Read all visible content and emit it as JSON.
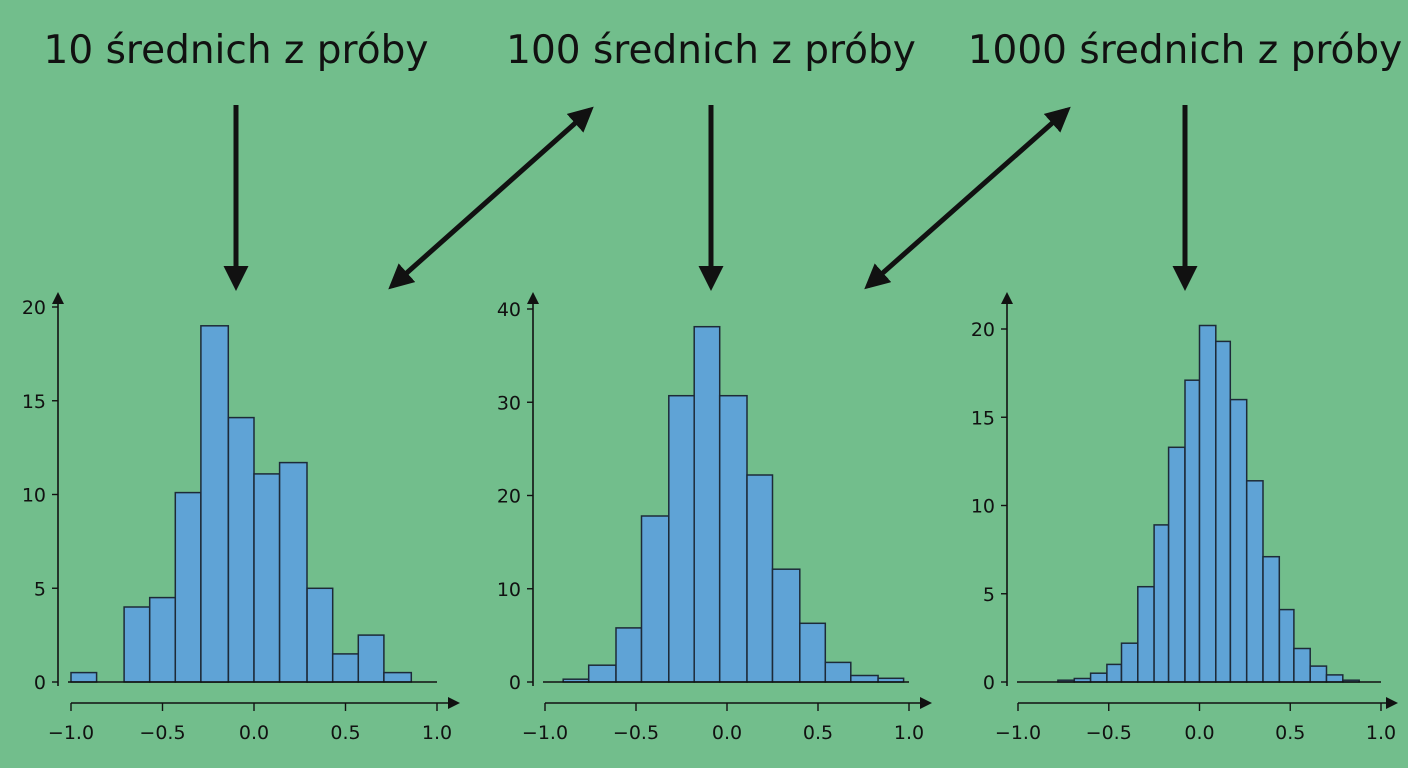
{
  "titles": [
    "10 średnich z próby",
    "100 średnich z próby",
    "1000 średnich z próby"
  ],
  "colors": {
    "background": "#72be8c",
    "bar_fill": "#5fa3d6",
    "bar_stroke": "#1d2a38",
    "ink": "#111111"
  },
  "chart_data": [
    {
      "type": "bar",
      "title": "10 średnich z próby",
      "xlabel": "",
      "ylabel": "",
      "xlim": [
        -1.0,
        1.0
      ],
      "ylim": [
        0,
        20
      ],
      "xticks": [
        "−1.0",
        "−0.5",
        "0.0",
        "0.5",
        "1.0"
      ],
      "yticks": [
        "0",
        "5",
        "10",
        "15",
        "20"
      ],
      "bins": [
        [
          -1.0,
          -0.86,
          0.5
        ],
        [
          -0.71,
          -0.57,
          4
        ],
        [
          -0.57,
          -0.43,
          4.5
        ],
        [
          -0.43,
          -0.29,
          10.1
        ],
        [
          -0.29,
          -0.14,
          19
        ],
        [
          -0.14,
          0.0,
          14.1
        ],
        [
          0.0,
          0.14,
          11.1
        ],
        [
          0.14,
          0.29,
          11.7
        ],
        [
          0.29,
          0.43,
          5
        ],
        [
          0.43,
          0.57,
          1.5
        ],
        [
          0.57,
          0.71,
          2.5
        ],
        [
          0.71,
          0.86,
          0.5
        ]
      ]
    },
    {
      "type": "bar",
      "title": "100 średnich z próby",
      "xlabel": "",
      "ylabel": "",
      "xlim": [
        -1.0,
        1.0
      ],
      "ylim": [
        0,
        40
      ],
      "xticks": [
        "−1.0",
        "−0.5",
        "0.0",
        "0.5",
        "1.0"
      ],
      "yticks": [
        "0",
        "10",
        "20",
        "30",
        "40"
      ],
      "bins": [
        [
          -0.9,
          -0.76,
          0.3
        ],
        [
          -0.76,
          -0.61,
          1.8
        ],
        [
          -0.61,
          -0.47,
          5.8
        ],
        [
          -0.47,
          -0.32,
          17.8
        ],
        [
          -0.32,
          -0.18,
          30.7
        ],
        [
          -0.18,
          -0.04,
          38.1
        ],
        [
          -0.04,
          0.11,
          30.7
        ],
        [
          0.11,
          0.25,
          22.2
        ],
        [
          0.25,
          0.4,
          12.1
        ],
        [
          0.4,
          0.54,
          6.3
        ],
        [
          0.54,
          0.68,
          2.1
        ],
        [
          0.68,
          0.83,
          0.7
        ],
        [
          0.83,
          0.97,
          0.4
        ]
      ]
    },
    {
      "type": "bar",
      "title": "1000 średnich z próby",
      "xlabel": "",
      "ylabel": "",
      "xlim": [
        -1.0,
        1.0
      ],
      "ylim": [
        0,
        20
      ],
      "xticks": [
        "−1.0",
        "−0.5",
        "0.0",
        "0.5",
        "1.0"
      ],
      "yticks": [
        "0",
        "5",
        "10",
        "15",
        "20"
      ],
      "bins": [
        [
          -0.78,
          -0.69,
          0.1
        ],
        [
          -0.69,
          -0.6,
          0.2
        ],
        [
          -0.6,
          -0.51,
          0.5
        ],
        [
          -0.51,
          -0.43,
          1
        ],
        [
          -0.43,
          -0.34,
          2.2
        ],
        [
          -0.34,
          -0.25,
          5.4
        ],
        [
          -0.25,
          -0.17,
          8.9
        ],
        [
          -0.17,
          -0.08,
          13.3
        ],
        [
          -0.08,
          0.0,
          17.1
        ],
        [
          0.0,
          0.09,
          20.2
        ],
        [
          0.09,
          0.17,
          19.3
        ],
        [
          0.17,
          0.26,
          16
        ],
        [
          0.26,
          0.35,
          11.4
        ],
        [
          0.35,
          0.44,
          7.1
        ],
        [
          0.44,
          0.52,
          4.1
        ],
        [
          0.52,
          0.61,
          1.9
        ],
        [
          0.61,
          0.7,
          0.9
        ],
        [
          0.7,
          0.79,
          0.4
        ],
        [
          0.79,
          0.88,
          0.1
        ]
      ]
    }
  ]
}
